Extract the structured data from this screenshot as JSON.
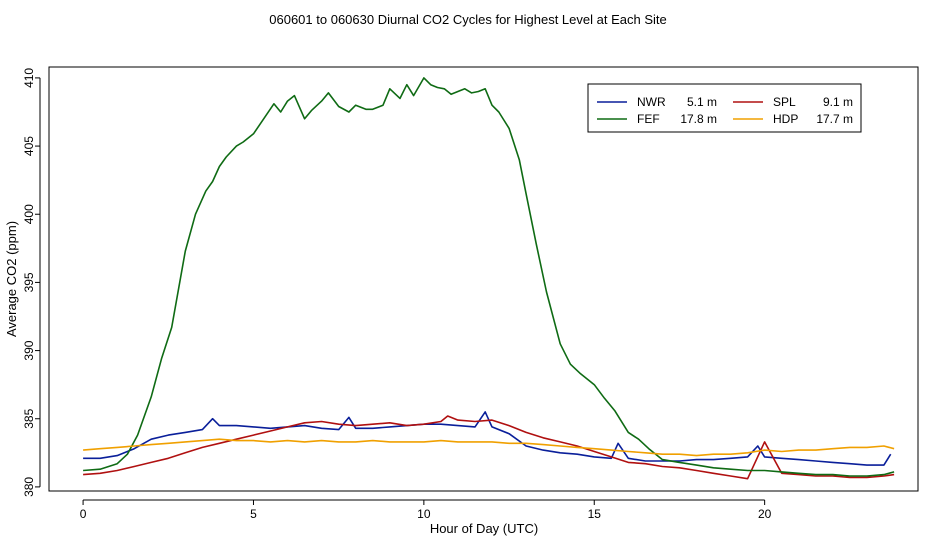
{
  "chart_data": {
    "type": "line",
    "title": "060601  to  060630 Diurnal CO2 Cycles for Highest Level at Each Site",
    "xlabel": "Hour of Day (UTC)",
    "ylabel": "Average CO2 (ppm)",
    "xlim": [
      -1.0,
      24.5
    ],
    "ylim": [
      379.7,
      410.8
    ],
    "xticks": [
      0,
      5,
      10,
      15,
      20
    ],
    "yticks": [
      380,
      385,
      390,
      395,
      400,
      405,
      410
    ],
    "grid": false,
    "legend_position": "top-right",
    "series": [
      {
        "name": "NWR",
        "height": "5.1 m",
        "color": "#0a1f9a",
        "x": [
          0,
          0.5,
          1,
          1.5,
          2,
          2.5,
          3,
          3.5,
          3.8,
          4,
          4.5,
          5,
          5.5,
          6,
          6.5,
          7,
          7.5,
          7.8,
          8,
          8.5,
          9,
          9.5,
          10,
          10.5,
          11,
          11.5,
          11.8,
          12,
          12.5,
          13,
          13.5,
          14,
          14.5,
          15,
          15.5,
          15.7,
          16,
          16.5,
          17,
          17.5,
          18,
          18.5,
          19,
          19.5,
          19.8,
          20,
          20.5,
          21,
          21.5,
          22,
          22.5,
          23,
          23.5,
          23.7
        ],
        "y": [
          382.1,
          382.1,
          382.3,
          382.8,
          383.5,
          383.8,
          384.0,
          384.2,
          385.0,
          384.5,
          384.5,
          384.4,
          384.3,
          384.4,
          384.5,
          384.3,
          384.2,
          385.1,
          384.3,
          384.3,
          384.4,
          384.5,
          384.6,
          384.6,
          384.5,
          384.4,
          385.5,
          384.4,
          383.9,
          383.0,
          382.7,
          382.5,
          382.4,
          382.2,
          382.1,
          383.2,
          382.1,
          381.9,
          381.9,
          381.9,
          382.0,
          382.0,
          382.1,
          382.2,
          383.0,
          382.2,
          382.1,
          382.0,
          381.9,
          381.8,
          381.7,
          381.6,
          381.6,
          382.4
        ]
      },
      {
        "name": "SPL",
        "height": "9.1 m",
        "color": "#b01010",
        "x": [
          0,
          0.5,
          1,
          1.5,
          2,
          2.5,
          3,
          3.5,
          4,
          4.5,
          5,
          5.5,
          6,
          6.5,
          7,
          7.5,
          8,
          8.5,
          9,
          9.5,
          10,
          10.5,
          10.7,
          11,
          11.5,
          12,
          12.5,
          13,
          13.5,
          14,
          14.5,
          15,
          15.5,
          16,
          16.5,
          17,
          17.5,
          18,
          18.5,
          19,
          19.5,
          20,
          20.5,
          21,
          21.5,
          22,
          22.5,
          23,
          23.5,
          23.8
        ],
        "y": [
          380.9,
          381.0,
          381.2,
          381.5,
          381.8,
          382.1,
          382.5,
          382.9,
          383.2,
          383.5,
          383.8,
          384.1,
          384.4,
          384.7,
          384.8,
          384.6,
          384.5,
          384.6,
          384.7,
          384.5,
          384.6,
          384.8,
          385.2,
          384.9,
          384.8,
          384.9,
          384.5,
          384.0,
          383.6,
          383.3,
          383.0,
          382.6,
          382.2,
          381.8,
          381.7,
          381.5,
          381.4,
          381.2,
          381.0,
          380.8,
          380.6,
          383.3,
          381.0,
          380.9,
          380.8,
          380.8,
          380.7,
          380.7,
          380.8,
          380.9
        ]
      },
      {
        "name": "FEF",
        "height": "17.8 m",
        "color": "#0f6b14",
        "x": [
          0,
          0.5,
          1,
          1.3,
          1.6,
          2,
          2.3,
          2.6,
          3,
          3.3,
          3.6,
          3.8,
          4,
          4.2,
          4.5,
          4.7,
          5,
          5.3,
          5.6,
          5.8,
          6,
          6.2,
          6.5,
          6.7,
          7,
          7.2,
          7.5,
          7.8,
          8,
          8.3,
          8.5,
          8.8,
          9,
          9.3,
          9.5,
          9.7,
          10,
          10.2,
          10.4,
          10.6,
          10.8,
          11,
          11.2,
          11.4,
          11.6,
          11.8,
          12,
          12.2,
          12.5,
          12.8,
          13,
          13.3,
          13.6,
          14,
          14.3,
          14.6,
          15,
          15.3,
          15.6,
          16,
          16.3,
          16.6,
          17,
          17.5,
          18,
          18.5,
          19,
          19.5,
          20,
          20.5,
          21,
          21.5,
          22,
          22.5,
          23,
          23.5,
          23.8
        ],
        "y": [
          381.2,
          381.3,
          381.7,
          382.4,
          383.8,
          386.6,
          389.4,
          391.7,
          397.3,
          400.0,
          401.7,
          402.4,
          403.5,
          404.2,
          405.0,
          405.3,
          405.9,
          407.0,
          408.1,
          407.5,
          408.3,
          408.7,
          407.0,
          407.6,
          408.3,
          408.9,
          407.9,
          407.5,
          408.0,
          407.7,
          407.7,
          408.0,
          409.2,
          408.5,
          409.5,
          408.7,
          410.0,
          409.5,
          409.3,
          409.2,
          408.8,
          409.0,
          409.2,
          408.9,
          409.0,
          409.2,
          408.0,
          407.5,
          406.3,
          404.0,
          401.5,
          397.8,
          394.3,
          390.5,
          389.0,
          388.3,
          387.5,
          386.5,
          385.6,
          384.0,
          383.5,
          382.8,
          382.0,
          381.8,
          381.6,
          381.4,
          381.3,
          381.2,
          381.2,
          381.1,
          381.0,
          380.9,
          380.9,
          380.8,
          380.8,
          380.9,
          381.1
        ]
      },
      {
        "name": "HDP",
        "height": "17.7 m",
        "color": "#f0a000",
        "x": [
          0,
          0.5,
          1,
          1.5,
          2,
          2.5,
          3,
          3.5,
          4,
          4.5,
          5,
          5.5,
          6,
          6.5,
          7,
          7.5,
          8,
          8.5,
          9,
          9.5,
          10,
          10.5,
          11,
          11.5,
          12,
          12.5,
          13,
          13.5,
          14,
          14.5,
          15,
          15.5,
          16,
          16.5,
          17,
          17.5,
          18,
          18.5,
          19,
          19.5,
          20,
          20.5,
          21,
          21.5,
          22,
          22.5,
          23,
          23.5,
          23.8
        ],
        "y": [
          382.7,
          382.8,
          382.9,
          383.0,
          383.1,
          383.2,
          383.3,
          383.4,
          383.5,
          383.4,
          383.4,
          383.3,
          383.4,
          383.3,
          383.4,
          383.3,
          383.3,
          383.4,
          383.3,
          383.3,
          383.3,
          383.4,
          383.3,
          383.3,
          383.3,
          383.2,
          383.2,
          383.1,
          383.0,
          382.9,
          382.8,
          382.7,
          382.6,
          382.5,
          382.4,
          382.4,
          382.3,
          382.4,
          382.4,
          382.5,
          382.7,
          382.6,
          382.7,
          382.7,
          382.8,
          382.9,
          382.9,
          383.0,
          382.8
        ]
      }
    ]
  }
}
